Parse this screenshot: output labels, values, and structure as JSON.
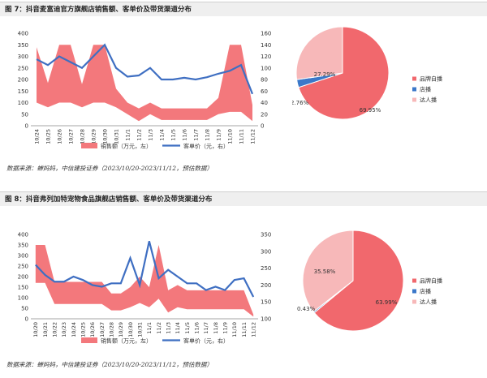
{
  "figures": [
    {
      "title": "图 7：抖音麦富迪官方旗舰店销售额、客单价及带货渠道分布",
      "source": "数据来源：蝉妈妈，中信建投证券（2023/10/20-2023/11/12，预估数据）",
      "chart_data": [
        {
          "type": "area+line",
          "categories": [
            "10/24",
            "10/25",
            "10/26",
            "10/27",
            "10/28",
            "10/29",
            "10/30",
            "10/31",
            "11/1",
            "11/2",
            "11/3",
            "11/4",
            "11/5",
            "11/6",
            "11/7",
            "11/8",
            "11/9",
            "11/10",
            "11/11",
            "11/12"
          ],
          "band_high": [
            340,
            185,
            350,
            350,
            180,
            350,
            350,
            160,
            100,
            75,
            100,
            75,
            75,
            75,
            75,
            75,
            120,
            350,
            350,
            90
          ],
          "band_low": [
            100,
            80,
            100,
            100,
            80,
            100,
            100,
            80,
            50,
            20,
            50,
            25,
            25,
            25,
            25,
            25,
            50,
            60,
            60,
            20
          ],
          "unit_price": [
            115,
            105,
            120,
            110,
            100,
            120,
            140,
            100,
            85,
            87,
            100,
            80,
            80,
            83,
            80,
            84,
            90,
            95,
            105,
            55
          ],
          "left_axis": {
            "min": 0,
            "max": 400,
            "ticks": [
              "0",
              "50",
              "100",
              "150",
              "200",
              "250",
              "300",
              "350",
              "400"
            ]
          },
          "right_axis": {
            "min": 0,
            "max": 160,
            "ticks": [
              "0",
              "20",
              "40",
              "60",
              "80",
              "100",
              "120",
              "140",
              "160"
            ]
          },
          "legend": [
            "销售额（万元，左）",
            "客单价（元，右）"
          ],
          "grid": false
        },
        {
          "type": "pie",
          "slices": [
            {
              "label": "品牌自播",
              "value": 69.95,
              "text": "69.95%"
            },
            {
              "label": "店播",
              "value": 2.76,
              "text": "2.76%"
            },
            {
              "label": "达人播",
              "value": 27.29,
              "text": "27.29%"
            }
          ],
          "legend_position": "right"
        }
      ]
    },
    {
      "title": "图 8：抖音弗列加特宠物食品旗舰店销售额、客单价及带货渠道分布",
      "source": "数据来源：蝉妈妈，中信建投证券（2023/10/20-2023/11/12，预估数据）",
      "chart_data": [
        {
          "type": "area+line",
          "categories": [
            "10/20",
            "10/21",
            "10/22",
            "10/23",
            "10/24",
            "10/25",
            "10/26",
            "10/27",
            "10/28",
            "10/29",
            "10/30",
            "10/31",
            "11/1",
            "11/2",
            "11/3",
            "11/4",
            "11/5",
            "11/6",
            "11/7",
            "11/8",
            "11/9",
            "11/10",
            "11/11",
            "11/12"
          ],
          "band_high": [
            350,
            350,
            175,
            175,
            175,
            175,
            175,
            175,
            120,
            120,
            150,
            200,
            150,
            350,
            135,
            160,
            135,
            135,
            135,
            135,
            135,
            135,
            135,
            20
          ],
          "band_low": [
            170,
            170,
            70,
            70,
            70,
            70,
            70,
            70,
            40,
            40,
            55,
            75,
            55,
            95,
            30,
            55,
            45,
            45,
            45,
            45,
            45,
            45,
            45,
            10
          ],
          "unit_price": [
            260,
            230,
            210,
            210,
            225,
            215,
            200,
            195,
            205,
            205,
            280,
            200,
            330,
            220,
            245,
            225,
            205,
            205,
            185,
            195,
            185,
            215,
            220,
            165
          ],
          "left_axis": {
            "min": 0,
            "max": 400,
            "ticks": [
              "0",
              "50",
              "100",
              "150",
              "200",
              "250",
              "300",
              "350",
              "400"
            ]
          },
          "right_axis": {
            "min": 100,
            "max": 350,
            "ticks": [
              "100",
              "150",
              "200",
              "250",
              "300",
              "350"
            ]
          },
          "legend": [
            "销售额（万元，左）",
            "客单价（元，右）"
          ],
          "grid": false
        },
        {
          "type": "pie",
          "slices": [
            {
              "label": "品牌自播",
              "value": 63.99,
              "text": "63.99%"
            },
            {
              "label": "店播",
              "value": 0.43,
              "text": "0.43%"
            },
            {
              "label": "达人播",
              "value": 35.58,
              "text": "35.58%"
            }
          ],
          "legend_position": "right"
        }
      ]
    }
  ],
  "colors": {
    "band": "#f3787c",
    "line": "#3f6fc2",
    "pie_brand": "#f1686d",
    "pie_store": "#3b78c9",
    "pie_talent": "#f7b8b9",
    "title_bar": "#efefef"
  }
}
